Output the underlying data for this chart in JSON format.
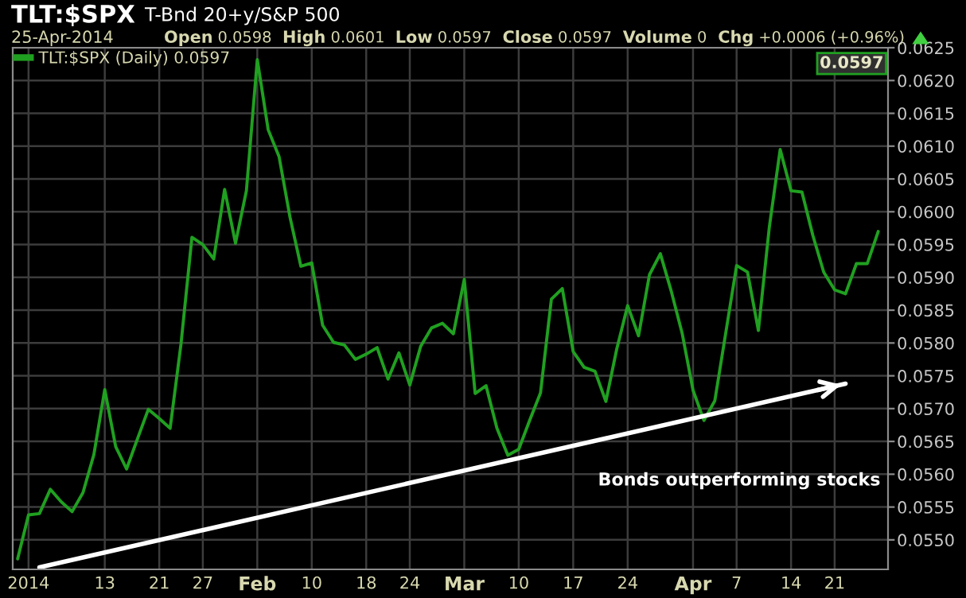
{
  "chart_data": {
    "type": "line",
    "title": "TLT:$SPX",
    "subtitle": "T-Bnd 20+y/S&P 500",
    "annotations": [
      "25-Apr-2014",
      "Open 0.0598",
      "High 0.0601",
      "Low 0.0597",
      "Close 0.0597",
      "Volume 0",
      "Chg +0.0006 (+0.96%)",
      "Bonds outperforming stocks",
      "0.0597"
    ],
    "categories": [
      null,
      "2014",
      null,
      null,
      null,
      null,
      null,
      null,
      "13",
      null,
      null,
      null,
      null,
      "21",
      null,
      null,
      null,
      "27",
      null,
      null,
      null,
      null,
      "Feb",
      null,
      null,
      null,
      null,
      "10",
      null,
      null,
      null,
      null,
      "18",
      null,
      null,
      null,
      "24",
      null,
      null,
      null,
      null,
      "Mar",
      null,
      null,
      null,
      null,
      "10",
      null,
      null,
      null,
      null,
      "17",
      null,
      null,
      null,
      null,
      "24",
      null,
      null,
      null,
      null,
      null,
      "Apr",
      null,
      null,
      null,
      "7",
      null,
      null,
      null,
      null,
      "14",
      null,
      null,
      null,
      "21",
      null,
      null,
      null,
      null
    ],
    "series": [
      {
        "name": "TLT:$SPX (Daily) 0.0597",
        "color": "#20a020",
        "values": [
          0.05471,
          0.05538,
          0.0554,
          0.05577,
          0.05558,
          0.05543,
          0.05572,
          0.0563,
          0.05729,
          0.05642,
          0.05608,
          0.05654,
          0.05699,
          0.05685,
          0.0567,
          0.05799,
          0.05961,
          0.0595,
          0.05928,
          0.06034,
          0.05952,
          0.06032,
          0.06232,
          0.06125,
          0.06084,
          0.05992,
          0.05917,
          0.05922,
          0.05827,
          0.05801,
          0.05797,
          0.05775,
          0.05783,
          0.05793,
          0.05745,
          0.05785,
          0.05736,
          0.05795,
          0.05823,
          0.0583,
          0.05814,
          0.05897,
          0.05723,
          0.05735,
          0.0567,
          0.05629,
          0.05638,
          0.05682,
          0.05724,
          0.05867,
          0.05883,
          0.05787,
          0.05763,
          0.05757,
          0.05711,
          0.05791,
          0.05857,
          0.05811,
          0.05904,
          0.05936,
          0.05879,
          0.05815,
          0.05728,
          0.05682,
          0.05712,
          0.05815,
          0.05918,
          0.05908,
          0.05819,
          0.05976,
          0.06095,
          0.06032,
          0.0603,
          0.05964,
          0.05908,
          0.05881,
          0.05875,
          0.05921,
          0.05921,
          0.0597
        ],
        "marker": "none"
      },
      {
        "color": "#ffffff",
        "values": [
          null,
          null,
          0.05458,
          null,
          null,
          null,
          null,
          null,
          null,
          null,
          null,
          null,
          null,
          null,
          null,
          null,
          null,
          null,
          null,
          null,
          null,
          null,
          null,
          null,
          null,
          null,
          null,
          null,
          null,
          null,
          null,
          null,
          null,
          null,
          null,
          null,
          null,
          null,
          null,
          null,
          null,
          null,
          null,
          null,
          null,
          null,
          null,
          null,
          null,
          null,
          null,
          null,
          null,
          null,
          null,
          null,
          null,
          null,
          null,
          null,
          null,
          null,
          null,
          null,
          null,
          null,
          null,
          null,
          null,
          null,
          null,
          null,
          null,
          null,
          null,
          null,
          0.05738,
          null,
          null,
          null
        ]
      }
    ],
    "ylim": [
      0.05455,
      0.0625
    ],
    "yticks": [
      {
        "value": 0.055,
        "label": "0.0550"
      },
      {
        "value": 0.0555,
        "label": "0.0555"
      },
      {
        "value": 0.056,
        "label": "0.0560"
      },
      {
        "value": 0.0565,
        "label": "0.0565"
      },
      {
        "value": 0.057,
        "label": "0.0570"
      },
      {
        "value": 0.0575,
        "label": "0.0575"
      },
      {
        "value": 0.058,
        "label": "0.0580"
      },
      {
        "value": 0.0585,
        "label": "0.0585"
      },
      {
        "value": 0.059,
        "label": "0.0590"
      },
      {
        "value": 0.0595,
        "label": "0.0595"
      },
      {
        "value": 0.06,
        "label": "0.0600"
      },
      {
        "value": 0.0605,
        "label": "0.0605"
      },
      {
        "value": 0.061,
        "label": "0.0610"
      },
      {
        "value": 0.0615,
        "label": "0.0615"
      },
      {
        "value": 0.062,
        "label": "0.0620"
      },
      {
        "value": 0.0625,
        "label": "0.0625"
      }
    ],
    "grid": true,
    "legend": "top left"
  }
}
